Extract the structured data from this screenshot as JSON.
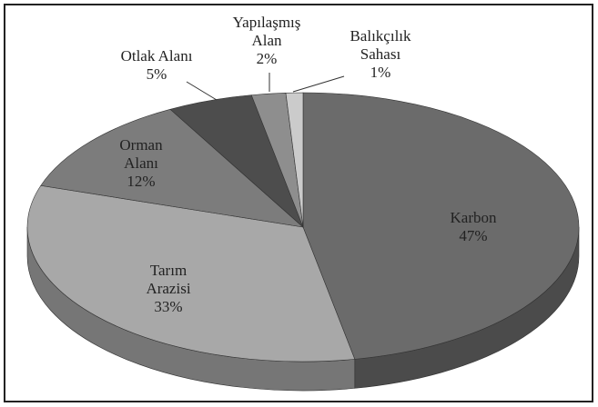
{
  "chart_data": {
    "type": "pie",
    "categories": [
      "Karbon",
      "Tarım Arazisi",
      "Orman Alanı",
      "Otlak Alanı",
      "Yapılaşmış Alan",
      "Balıkçılık Sahası"
    ],
    "values": [
      47,
      33,
      12,
      5,
      2,
      1
    ],
    "value_labels": [
      "47%",
      "33%",
      "12%",
      "5%",
      "2%",
      "1%"
    ],
    "colors": [
      "#6b6b6b",
      "#a8a8a8",
      "#7c7c7c",
      "#4d4d4d",
      "#8e8e8e",
      "#cbcbcb"
    ]
  }
}
